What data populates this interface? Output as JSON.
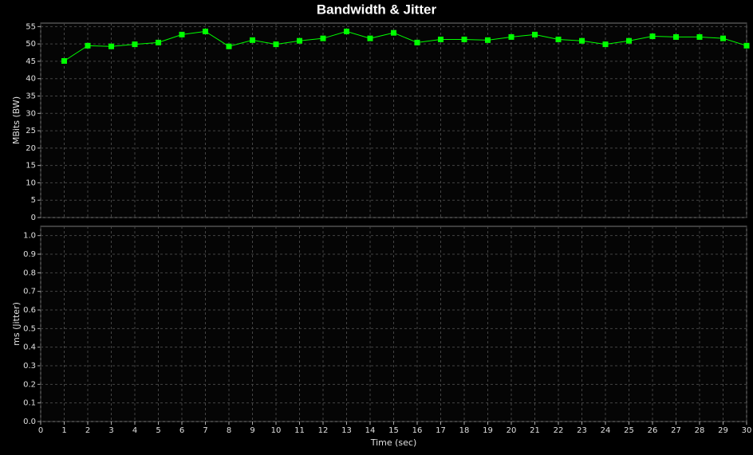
{
  "chart_data": [
    {
      "type": "line",
      "title": "Bandwidth & Jitter",
      "ylabel": "MBits (BW)",
      "x": [
        1,
        2,
        3,
        4,
        5,
        6,
        7,
        8,
        9,
        10,
        11,
        12,
        13,
        14,
        15,
        16,
        17,
        18,
        19,
        20,
        21,
        22,
        23,
        24,
        25,
        26,
        27,
        28,
        29,
        30
      ],
      "series": [
        {
          "color": "#00ff00",
          "values": [
            45.1,
            49.5,
            49.3,
            49.9,
            50.4,
            52.7,
            53.6,
            49.3,
            51.1,
            49.9,
            50.9,
            51.6,
            53.6,
            51.6,
            53.2,
            50.4,
            51.3,
            51.3,
            51.1,
            52.0,
            52.7,
            51.3,
            50.9,
            49.9,
            50.9,
            52.2,
            52.0,
            52.0,
            51.6,
            49.5
          ]
        }
      ],
      "ylim": [
        0,
        56
      ],
      "yticks": [
        0,
        5,
        10,
        15,
        20,
        25,
        30,
        35,
        40,
        45,
        50,
        55
      ],
      "grid": true
    },
    {
      "type": "line",
      "ylabel": "ms (Jitter)",
      "xlabel": "Time (sec)",
      "xlim": [
        0,
        30
      ],
      "xticks": [
        0,
        1,
        2,
        3,
        4,
        5,
        6,
        7,
        8,
        9,
        10,
        11,
        12,
        13,
        14,
        15,
        16,
        17,
        18,
        19,
        20,
        21,
        22,
        23,
        24,
        25,
        26,
        27,
        28,
        29,
        30
      ],
      "ylim": [
        0,
        1.05
      ],
      "yticks": [
        {
          "value": 0,
          "label": "0.0"
        },
        {
          "value": 0.1,
          "label": "0.1"
        },
        {
          "value": 0.2,
          "label": "0.2"
        },
        {
          "value": 0.3,
          "label": "0.3"
        },
        {
          "value": 0.4,
          "label": "0.4"
        },
        {
          "value": 0.5,
          "label": "0.5"
        },
        {
          "value": 0.6,
          "label": "0.6"
        },
        {
          "value": 0.7,
          "label": "0.7"
        },
        {
          "value": 0.8,
          "label": "0.8"
        },
        {
          "value": 0.9,
          "label": "0.9"
        },
        {
          "value": 1,
          "label": "1.0"
        }
      ],
      "grid": true
    }
  ]
}
